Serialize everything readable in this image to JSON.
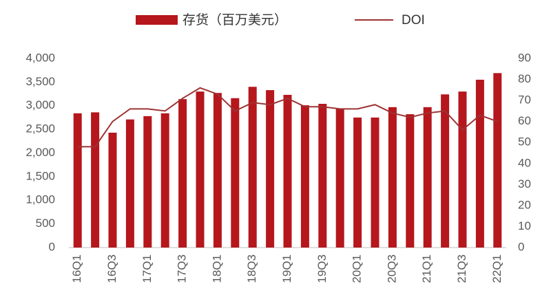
{
  "chart_data": {
    "type": "bar",
    "categories": [
      "16Q1",
      null,
      "16Q3",
      null,
      "17Q1",
      null,
      "17Q3",
      null,
      "18Q1",
      null,
      "18Q3",
      null,
      "19Q1",
      null,
      "19Q3",
      null,
      "20Q1",
      null,
      "20Q3",
      null,
      "21Q1",
      null,
      "21Q3",
      null,
      "22Q1"
    ],
    "series": [
      {
        "name": "存货（百万美元）",
        "type": "bar",
        "color": "#b5171d",
        "values": [
          2840,
          2860,
          2430,
          2710,
          2780,
          2840,
          3140,
          3300,
          3270,
          3160,
          3400,
          3330,
          3230,
          3010,
          3040,
          2940,
          2750,
          2750,
          2970,
          2820,
          2970,
          3240,
          3300,
          3550,
          3690
        ]
      },
      {
        "name": "DOI",
        "type": "line",
        "axis": "y2",
        "color": "#9e3333",
        "values": [
          48,
          48,
          60,
          66,
          66,
          65,
          71,
          76,
          73,
          65,
          69,
          68,
          71,
          67,
          67,
          66,
          66,
          68,
          64,
          62,
          64,
          65,
          56,
          63,
          60
        ]
      }
    ],
    "ylim": [
      0,
      4000
    ],
    "yticks": [
      0,
      500,
      {
        "value": 1000,
        "label": "1,000"
      },
      {
        "value": 1500,
        "label": "1,500"
      },
      {
        "value": 2000,
        "label": "2,000"
      },
      {
        "value": 2500,
        "label": "2,500"
      },
      {
        "value": 3000,
        "label": "3,000"
      },
      {
        "value": 3500,
        "label": "3,500"
      },
      {
        "value": 4000,
        "label": "4,000"
      }
    ],
    "y2lim": [
      0,
      90
    ],
    "y2ticks": [
      0,
      10,
      20,
      30,
      40,
      50,
      60,
      70,
      80,
      90
    ],
    "grid": false,
    "legend": "top"
  }
}
